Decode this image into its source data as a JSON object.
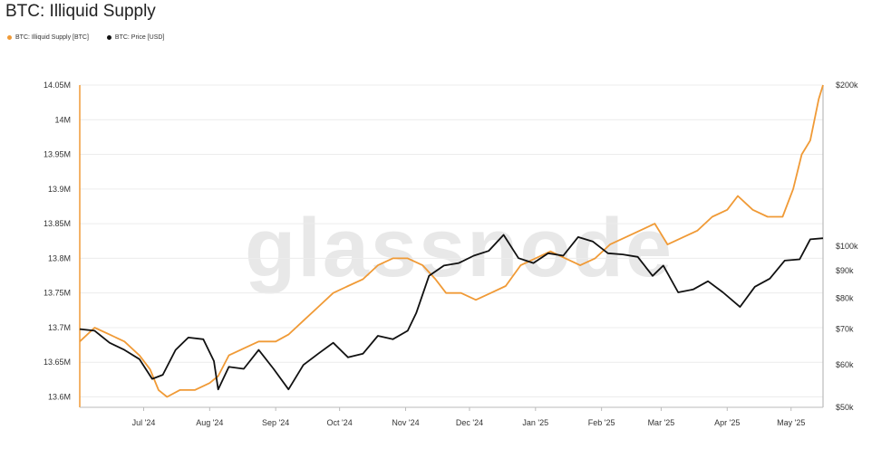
{
  "title": "BTC: Illiquid Supply",
  "watermark": "glassnode",
  "colors": {
    "supply": "#f09a36",
    "price": "#111111",
    "grid": "#ececec",
    "axis": "#bbbbbb"
  },
  "chart_data": {
    "type": "line",
    "title": "BTC: Illiquid Supply",
    "x_ticks": [
      "Jul '24",
      "Aug '24",
      "Sep '24",
      "Oct '24",
      "Nov '24",
      "Dec '24",
      "Jan '25",
      "Feb '25",
      "Mar '25",
      "Apr '25",
      "May '25"
    ],
    "x_tick_dates": [
      "2024-07-01",
      "2024-08-01",
      "2024-09-01",
      "2024-10-01",
      "2024-11-01",
      "2024-12-01",
      "2025-01-01",
      "2025-02-01",
      "2025-03-01",
      "2025-04-01",
      "2025-05-01"
    ],
    "xlim": [
      "2024-06-01",
      "2025-05-16"
    ],
    "left_axis": {
      "ticks": [
        "14.05M",
        "14M",
        "13.95M",
        "13.9M",
        "13.85M",
        "13.8M",
        "13.75M",
        "13.7M",
        "13.65M",
        "13.6M"
      ],
      "values": [
        14.05,
        14.0,
        13.95,
        13.9,
        13.85,
        13.8,
        13.75,
        13.7,
        13.65,
        13.6
      ],
      "ylim": [
        13.585,
        14.05
      ]
    },
    "right_axis": {
      "scale": "log",
      "ticks": [
        "$200k",
        "$100k",
        "$90k",
        "$80k",
        "$70k",
        "$60k",
        "$50k"
      ],
      "values": [
        200000,
        100000,
        90000,
        80000,
        70000,
        60000,
        50000
      ],
      "ylim": [
        50000,
        200000
      ]
    },
    "legend_position": "top-left",
    "series": [
      {
        "name": "BTC: Illiquid Supply [BTC]",
        "axis": "left",
        "points": [
          [
            "2024-06-01",
            13.68
          ],
          [
            "2024-06-08",
            13.7
          ],
          [
            "2024-06-15",
            13.69
          ],
          [
            "2024-06-22",
            13.68
          ],
          [
            "2024-06-29",
            13.66
          ],
          [
            "2024-07-04",
            13.64
          ],
          [
            "2024-07-08",
            13.61
          ],
          [
            "2024-07-12",
            13.6
          ],
          [
            "2024-07-18",
            13.61
          ],
          [
            "2024-07-25",
            13.61
          ],
          [
            "2024-08-01",
            13.62
          ],
          [
            "2024-08-05",
            13.63
          ],
          [
            "2024-08-10",
            13.66
          ],
          [
            "2024-08-17",
            13.67
          ],
          [
            "2024-08-24",
            13.68
          ],
          [
            "2024-09-01",
            13.68
          ],
          [
            "2024-09-07",
            13.69
          ],
          [
            "2024-09-14",
            13.71
          ],
          [
            "2024-09-21",
            13.73
          ],
          [
            "2024-09-28",
            13.75
          ],
          [
            "2024-10-05",
            13.76
          ],
          [
            "2024-10-12",
            13.77
          ],
          [
            "2024-10-19",
            13.79
          ],
          [
            "2024-10-26",
            13.8
          ],
          [
            "2024-11-02",
            13.8
          ],
          [
            "2024-11-09",
            13.79
          ],
          [
            "2024-11-15",
            13.77
          ],
          [
            "2024-11-20",
            13.75
          ],
          [
            "2024-11-27",
            13.75
          ],
          [
            "2024-12-04",
            13.74
          ],
          [
            "2024-12-11",
            13.75
          ],
          [
            "2024-12-18",
            13.76
          ],
          [
            "2024-12-25",
            13.79
          ],
          [
            "2025-01-01",
            13.8
          ],
          [
            "2025-01-08",
            13.81
          ],
          [
            "2025-01-15",
            13.8
          ],
          [
            "2025-01-22",
            13.79
          ],
          [
            "2025-01-29",
            13.8
          ],
          [
            "2025-02-05",
            13.82
          ],
          [
            "2025-02-12",
            13.83
          ],
          [
            "2025-02-19",
            13.84
          ],
          [
            "2025-02-26",
            13.85
          ],
          [
            "2025-03-04",
            13.82
          ],
          [
            "2025-03-11",
            13.83
          ],
          [
            "2025-03-18",
            13.84
          ],
          [
            "2025-03-25",
            13.86
          ],
          [
            "2025-04-01",
            13.87
          ],
          [
            "2025-04-06",
            13.89
          ],
          [
            "2025-04-13",
            13.87
          ],
          [
            "2025-04-20",
            13.86
          ],
          [
            "2025-04-27",
            13.86
          ],
          [
            "2025-05-02",
            13.9
          ],
          [
            "2025-05-06",
            13.95
          ],
          [
            "2025-05-10",
            13.97
          ],
          [
            "2025-05-14",
            14.03
          ],
          [
            "2025-05-16",
            14.05
          ]
        ]
      },
      {
        "name": "BTC: Price [USD]",
        "axis": "right",
        "points": [
          [
            "2024-06-01",
            70000
          ],
          [
            "2024-06-08",
            69500
          ],
          [
            "2024-06-15",
            66000
          ],
          [
            "2024-06-22",
            64000
          ],
          [
            "2024-06-29",
            61500
          ],
          [
            "2024-07-05",
            56500
          ],
          [
            "2024-07-10",
            57500
          ],
          [
            "2024-07-16",
            64000
          ],
          [
            "2024-07-22",
            67500
          ],
          [
            "2024-07-29",
            67000
          ],
          [
            "2024-08-03",
            61000
          ],
          [
            "2024-08-05",
            54000
          ],
          [
            "2024-08-10",
            59500
          ],
          [
            "2024-08-17",
            59000
          ],
          [
            "2024-08-24",
            64000
          ],
          [
            "2024-08-31",
            59000
          ],
          [
            "2024-09-07",
            54000
          ],
          [
            "2024-09-14",
            60000
          ],
          [
            "2024-09-21",
            63000
          ],
          [
            "2024-09-28",
            66000
          ],
          [
            "2024-10-05",
            62000
          ],
          [
            "2024-10-12",
            63000
          ],
          [
            "2024-10-19",
            68000
          ],
          [
            "2024-10-26",
            67000
          ],
          [
            "2024-11-02",
            69500
          ],
          [
            "2024-11-06",
            75000
          ],
          [
            "2024-11-12",
            88000
          ],
          [
            "2024-11-19",
            92000
          ],
          [
            "2024-11-26",
            93000
          ],
          [
            "2024-12-03",
            96000
          ],
          [
            "2024-12-10",
            98000
          ],
          [
            "2024-12-17",
            105000
          ],
          [
            "2024-12-24",
            95000
          ],
          [
            "2024-12-31",
            93000
          ],
          [
            "2025-01-07",
            97000
          ],
          [
            "2025-01-14",
            96000
          ],
          [
            "2025-01-21",
            104000
          ],
          [
            "2025-01-28",
            102000
          ],
          [
            "2025-02-04",
            97000
          ],
          [
            "2025-02-11",
            96500
          ],
          [
            "2025-02-18",
            95500
          ],
          [
            "2025-02-25",
            88000
          ],
          [
            "2025-03-02",
            92000
          ],
          [
            "2025-03-09",
            82000
          ],
          [
            "2025-03-16",
            83000
          ],
          [
            "2025-03-23",
            86000
          ],
          [
            "2025-03-30",
            82000
          ],
          [
            "2025-04-07",
            77000
          ],
          [
            "2025-04-14",
            84000
          ],
          [
            "2025-04-21",
            87000
          ],
          [
            "2025-04-28",
            94000
          ],
          [
            "2025-05-05",
            94500
          ],
          [
            "2025-05-10",
            103000
          ],
          [
            "2025-05-16",
            103500
          ]
        ]
      }
    ]
  }
}
